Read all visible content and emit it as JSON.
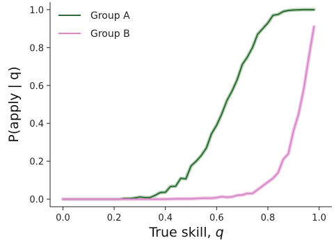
{
  "chart_data": {
    "type": "line",
    "title": "",
    "xlabel": "True skill, ",
    "xlabel_var": "q",
    "ylabel": "P(apply | q)",
    "xlim": [
      -0.05,
      1.05
    ],
    "ylim": [
      -0.04,
      1.04
    ],
    "xticks": [
      0.0,
      0.2,
      0.4,
      0.6,
      0.8,
      1.0
    ],
    "xtick_labels": [
      "0.0",
      "0.2",
      "0.4",
      "0.6",
      "0.8",
      "1.0"
    ],
    "yticks": [
      0.0,
      0.2,
      0.4,
      0.6,
      0.8,
      1.0
    ],
    "ytick_labels": [
      "0.0",
      "0.2",
      "0.4",
      "0.6",
      "0.8",
      "1.0"
    ],
    "grid": false,
    "legend_position": "top-left",
    "series": [
      {
        "name": "Group A",
        "color": "#2e6b35",
        "band_color": "#b7d1b6",
        "x": [
          0.0,
          0.2,
          0.22,
          0.24,
          0.26,
          0.28,
          0.3,
          0.32,
          0.34,
          0.36,
          0.38,
          0.4,
          0.42,
          0.44,
          0.46,
          0.48,
          0.5,
          0.52,
          0.54,
          0.56,
          0.58,
          0.6,
          0.62,
          0.64,
          0.66,
          0.68,
          0.7,
          0.72,
          0.74,
          0.76,
          0.78,
          0.8,
          0.82,
          0.84,
          0.86,
          0.88,
          0.9,
          0.92,
          0.94,
          0.96,
          0.98
        ],
        "y": [
          0.0,
          0.0,
          0.0,
          0.003,
          0.003,
          0.006,
          0.011,
          0.008,
          0.008,
          0.02,
          0.035,
          0.036,
          0.067,
          0.068,
          0.11,
          0.107,
          0.175,
          0.2,
          0.23,
          0.27,
          0.345,
          0.39,
          0.45,
          0.52,
          0.57,
          0.63,
          0.71,
          0.75,
          0.8,
          0.87,
          0.9,
          0.93,
          0.97,
          0.975,
          0.99,
          0.996,
          0.998,
          0.999,
          1.0,
          1.0,
          1.0
        ]
      },
      {
        "name": "Group B",
        "color": "#d88ac8",
        "band_color": "#efc6e6",
        "x": [
          0.0,
          0.2,
          0.4,
          0.45,
          0.5,
          0.55,
          0.58,
          0.6,
          0.62,
          0.64,
          0.66,
          0.68,
          0.7,
          0.72,
          0.74,
          0.76,
          0.78,
          0.8,
          0.82,
          0.84,
          0.86,
          0.88,
          0.9,
          0.92,
          0.94,
          0.96,
          0.98
        ],
        "y": [
          0.0,
          0.0,
          0.0,
          0.002,
          0.002,
          0.005,
          0.005,
          0.008,
          0.013,
          0.01,
          0.012,
          0.02,
          0.022,
          0.03,
          0.03,
          0.05,
          0.07,
          0.09,
          0.11,
          0.14,
          0.21,
          0.24,
          0.36,
          0.45,
          0.58,
          0.75,
          0.91
        ]
      }
    ]
  }
}
